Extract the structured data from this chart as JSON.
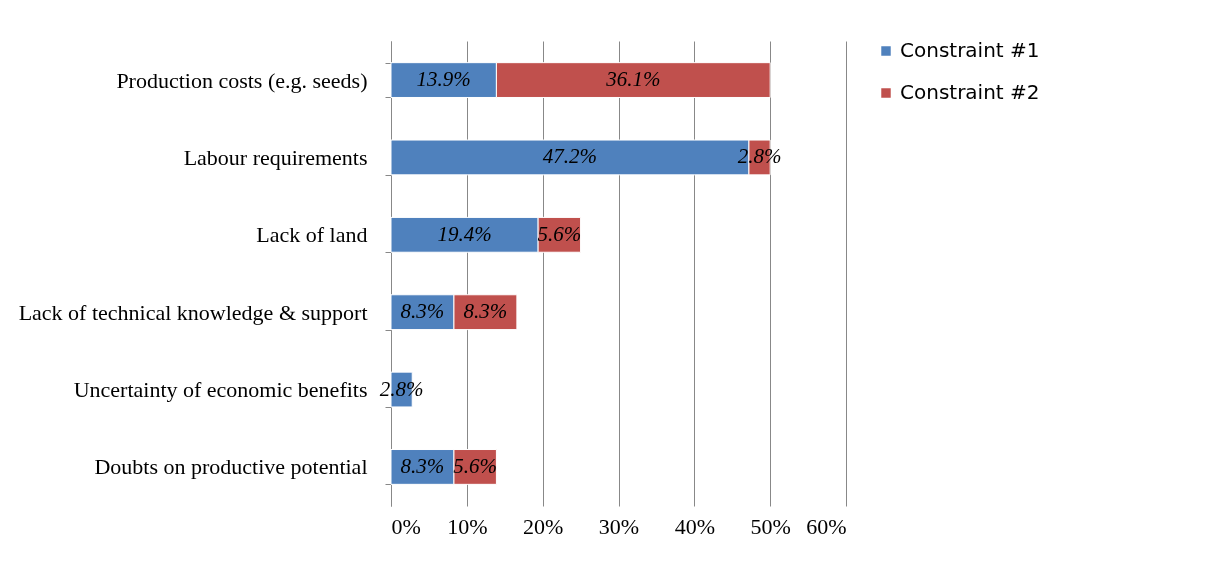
{
  "chart_data": {
    "type": "bar",
    "orientation": "horizontal",
    "stacked": true,
    "categories": [
      "Production costs (e.g. seeds)",
      "Labour requirements",
      "Lack of land",
      "Lack of technical knowledge & support",
      "Uncertainty of economic benefits",
      "Doubts on productive potential"
    ],
    "series": [
      {
        "name": "Constraint #1",
        "color": "#4f81bd",
        "values": [
          13.9,
          47.2,
          19.4,
          8.3,
          2.8,
          8.3
        ],
        "value_labels": [
          "13.9%",
          "47.2%",
          "19.4%",
          "8.3%",
          "2.8%",
          "8.3%"
        ]
      },
      {
        "name": "Constraint #2",
        "color": "#c0504d",
        "values": [
          36.1,
          2.8,
          5.6,
          8.3,
          null,
          5.6
        ],
        "value_labels": [
          "36.1%",
          "2.8%",
          "5.6%",
          "8.3%",
          null,
          "5.6%"
        ]
      }
    ],
    "xlim": [
      0,
      60
    ],
    "xticks": [
      {
        "value": 0,
        "label": "0%"
      },
      {
        "value": 10,
        "label": "10%"
      },
      {
        "value": 20,
        "label": "20%"
      },
      {
        "value": 30,
        "label": "30%"
      },
      {
        "value": 40,
        "label": "40%"
      },
      {
        "value": 50,
        "label": "50%"
      },
      {
        "value": 60,
        "label": "60%"
      }
    ],
    "grid": "x",
    "legend": "right"
  }
}
